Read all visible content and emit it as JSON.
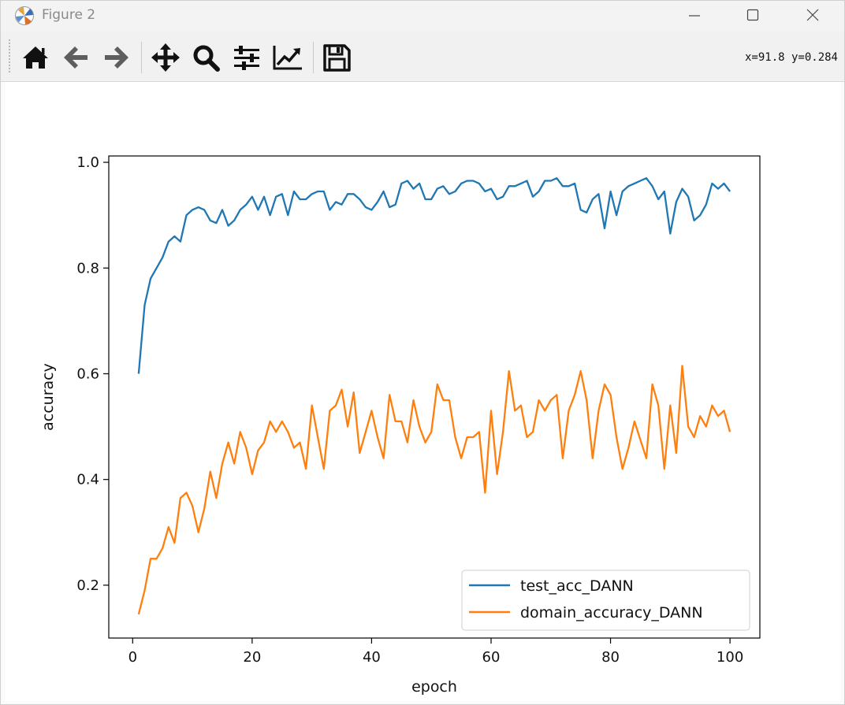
{
  "window": {
    "title": "Figure 2"
  },
  "toolbar": {
    "buttons": [
      {
        "name": "home",
        "icon": "home-icon"
      },
      {
        "name": "back",
        "icon": "arrow-left-icon"
      },
      {
        "name": "forward",
        "icon": "arrow-right-icon"
      },
      {
        "name": "pan",
        "icon": "move-icon"
      },
      {
        "name": "zoom",
        "icon": "magnifier-icon"
      },
      {
        "name": "configure-subplots",
        "icon": "sliders-icon"
      },
      {
        "name": "edit-axis",
        "icon": "line-chart-icon"
      },
      {
        "name": "save",
        "icon": "floppy-disk-icon"
      }
    ],
    "coords": "x=91.8 y=0.284"
  },
  "chart_data": {
    "type": "line",
    "xlabel": "epoch",
    "ylabel": "accuracy",
    "xlim": [
      -4,
      105
    ],
    "ylim": [
      0.1,
      1.012
    ],
    "xticks": [
      "0",
      "20",
      "40",
      "60",
      "80",
      "100"
    ],
    "yticks": [
      "0.2",
      "0.4",
      "0.6",
      "0.8",
      "1.0"
    ],
    "xtick_values": [
      0,
      20,
      40,
      60,
      80,
      100
    ],
    "ytick_values": [
      0.2,
      0.4,
      0.6,
      0.8,
      1.0
    ],
    "legend_position": "lower right",
    "x": [
      1,
      2,
      3,
      4,
      5,
      6,
      7,
      8,
      9,
      10,
      11,
      12,
      13,
      14,
      15,
      16,
      17,
      18,
      19,
      20,
      21,
      22,
      23,
      24,
      25,
      26,
      27,
      28,
      29,
      30,
      31,
      32,
      33,
      34,
      35,
      36,
      37,
      38,
      39,
      40,
      41,
      42,
      43,
      44,
      45,
      46,
      47,
      48,
      49,
      50,
      51,
      52,
      53,
      54,
      55,
      56,
      57,
      58,
      59,
      60,
      61,
      62,
      63,
      64,
      65,
      66,
      67,
      68,
      69,
      70,
      71,
      72,
      73,
      74,
      75,
      76,
      77,
      78,
      79,
      80,
      81,
      82,
      83,
      84,
      85,
      86,
      87,
      88,
      89,
      90,
      91,
      92,
      93,
      94,
      95,
      96,
      97,
      98,
      99,
      100
    ],
    "series": [
      {
        "name": "test_acc_DANN",
        "color": "#1f77b4",
        "values": [
          0.6,
          0.73,
          0.78,
          0.8,
          0.82,
          0.85,
          0.86,
          0.85,
          0.9,
          0.91,
          0.915,
          0.91,
          0.89,
          0.885,
          0.91,
          0.88,
          0.89,
          0.91,
          0.92,
          0.935,
          0.91,
          0.935,
          0.9,
          0.935,
          0.94,
          0.9,
          0.945,
          0.93,
          0.93,
          0.94,
          0.945,
          0.945,
          0.91,
          0.925,
          0.92,
          0.94,
          0.94,
          0.93,
          0.915,
          0.91,
          0.925,
          0.945,
          0.915,
          0.92,
          0.96,
          0.965,
          0.95,
          0.96,
          0.93,
          0.93,
          0.95,
          0.955,
          0.94,
          0.945,
          0.96,
          0.965,
          0.965,
          0.96,
          0.945,
          0.95,
          0.93,
          0.935,
          0.955,
          0.955,
          0.96,
          0.965,
          0.935,
          0.945,
          0.965,
          0.965,
          0.97,
          0.955,
          0.955,
          0.96,
          0.91,
          0.905,
          0.93,
          0.94,
          0.875,
          0.945,
          0.9,
          0.945,
          0.955,
          0.96,
          0.965,
          0.97,
          0.955,
          0.93,
          0.945,
          0.865,
          0.925,
          0.95,
          0.935,
          0.89,
          0.9,
          0.92,
          0.96,
          0.95,
          0.96,
          0.945
        ]
      },
      {
        "name": "domain_accuracy_DANN",
        "color": "#ff7f0e",
        "values": [
          0.145,
          0.19,
          0.25,
          0.25,
          0.27,
          0.31,
          0.28,
          0.365,
          0.375,
          0.35,
          0.3,
          0.345,
          0.415,
          0.365,
          0.43,
          0.47,
          0.43,
          0.49,
          0.46,
          0.41,
          0.455,
          0.47,
          0.51,
          0.49,
          0.51,
          0.49,
          0.46,
          0.47,
          0.42,
          0.54,
          0.48,
          0.42,
          0.53,
          0.54,
          0.57,
          0.5,
          0.565,
          0.45,
          0.49,
          0.53,
          0.48,
          0.44,
          0.56,
          0.51,
          0.51,
          0.47,
          0.55,
          0.5,
          0.47,
          0.49,
          0.58,
          0.55,
          0.55,
          0.48,
          0.44,
          0.48,
          0.48,
          0.49,
          0.375,
          0.53,
          0.41,
          0.49,
          0.605,
          0.53,
          0.54,
          0.48,
          0.49,
          0.55,
          0.53,
          0.55,
          0.56,
          0.44,
          0.53,
          0.56,
          0.605,
          0.55,
          0.44,
          0.53,
          0.58,
          0.56,
          0.48,
          0.42,
          0.46,
          0.51,
          0.475,
          0.44,
          0.58,
          0.54,
          0.42,
          0.54,
          0.45,
          0.615,
          0.5,
          0.48,
          0.52,
          0.5,
          0.54,
          0.52,
          0.53,
          0.49
        ]
      }
    ]
  }
}
